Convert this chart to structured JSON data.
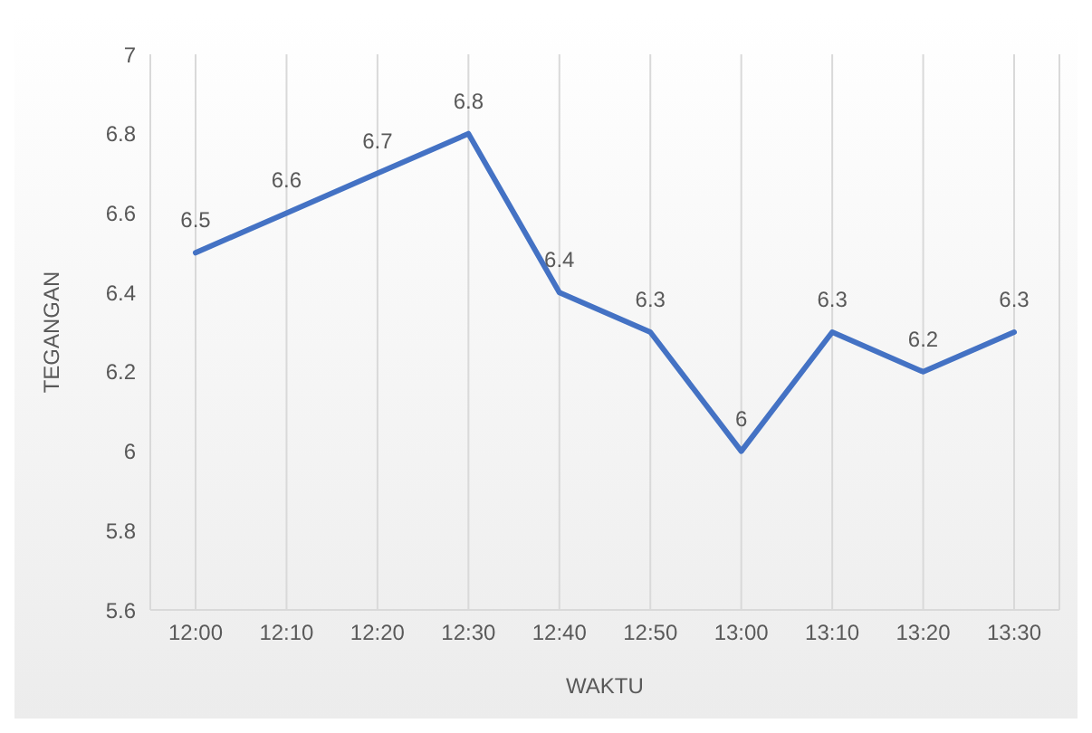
{
  "chart_data": {
    "type": "line",
    "xlabel": "WAKTU",
    "ylabel": "TEGANGAN",
    "categories": [
      "12:00",
      "12:10",
      "12:20",
      "12:30",
      "12:40",
      "12:50",
      "13:00",
      "13:10",
      "13:20",
      "13:30"
    ],
    "series": [
      {
        "color": "#4472c4",
        "values": [
          6.5,
          6.6,
          6.7,
          6.8,
          6.4,
          6.3,
          6,
          6.3,
          6.2,
          6.3
        ]
      }
    ],
    "ylim": [
      5.6,
      7
    ],
    "yticks": [
      5.6,
      5.8,
      6,
      6.2,
      6.4,
      6.6,
      6.8,
      7
    ],
    "grid": "x",
    "marker": "none",
    "line_style": "solid",
    "data_labels": true
  }
}
